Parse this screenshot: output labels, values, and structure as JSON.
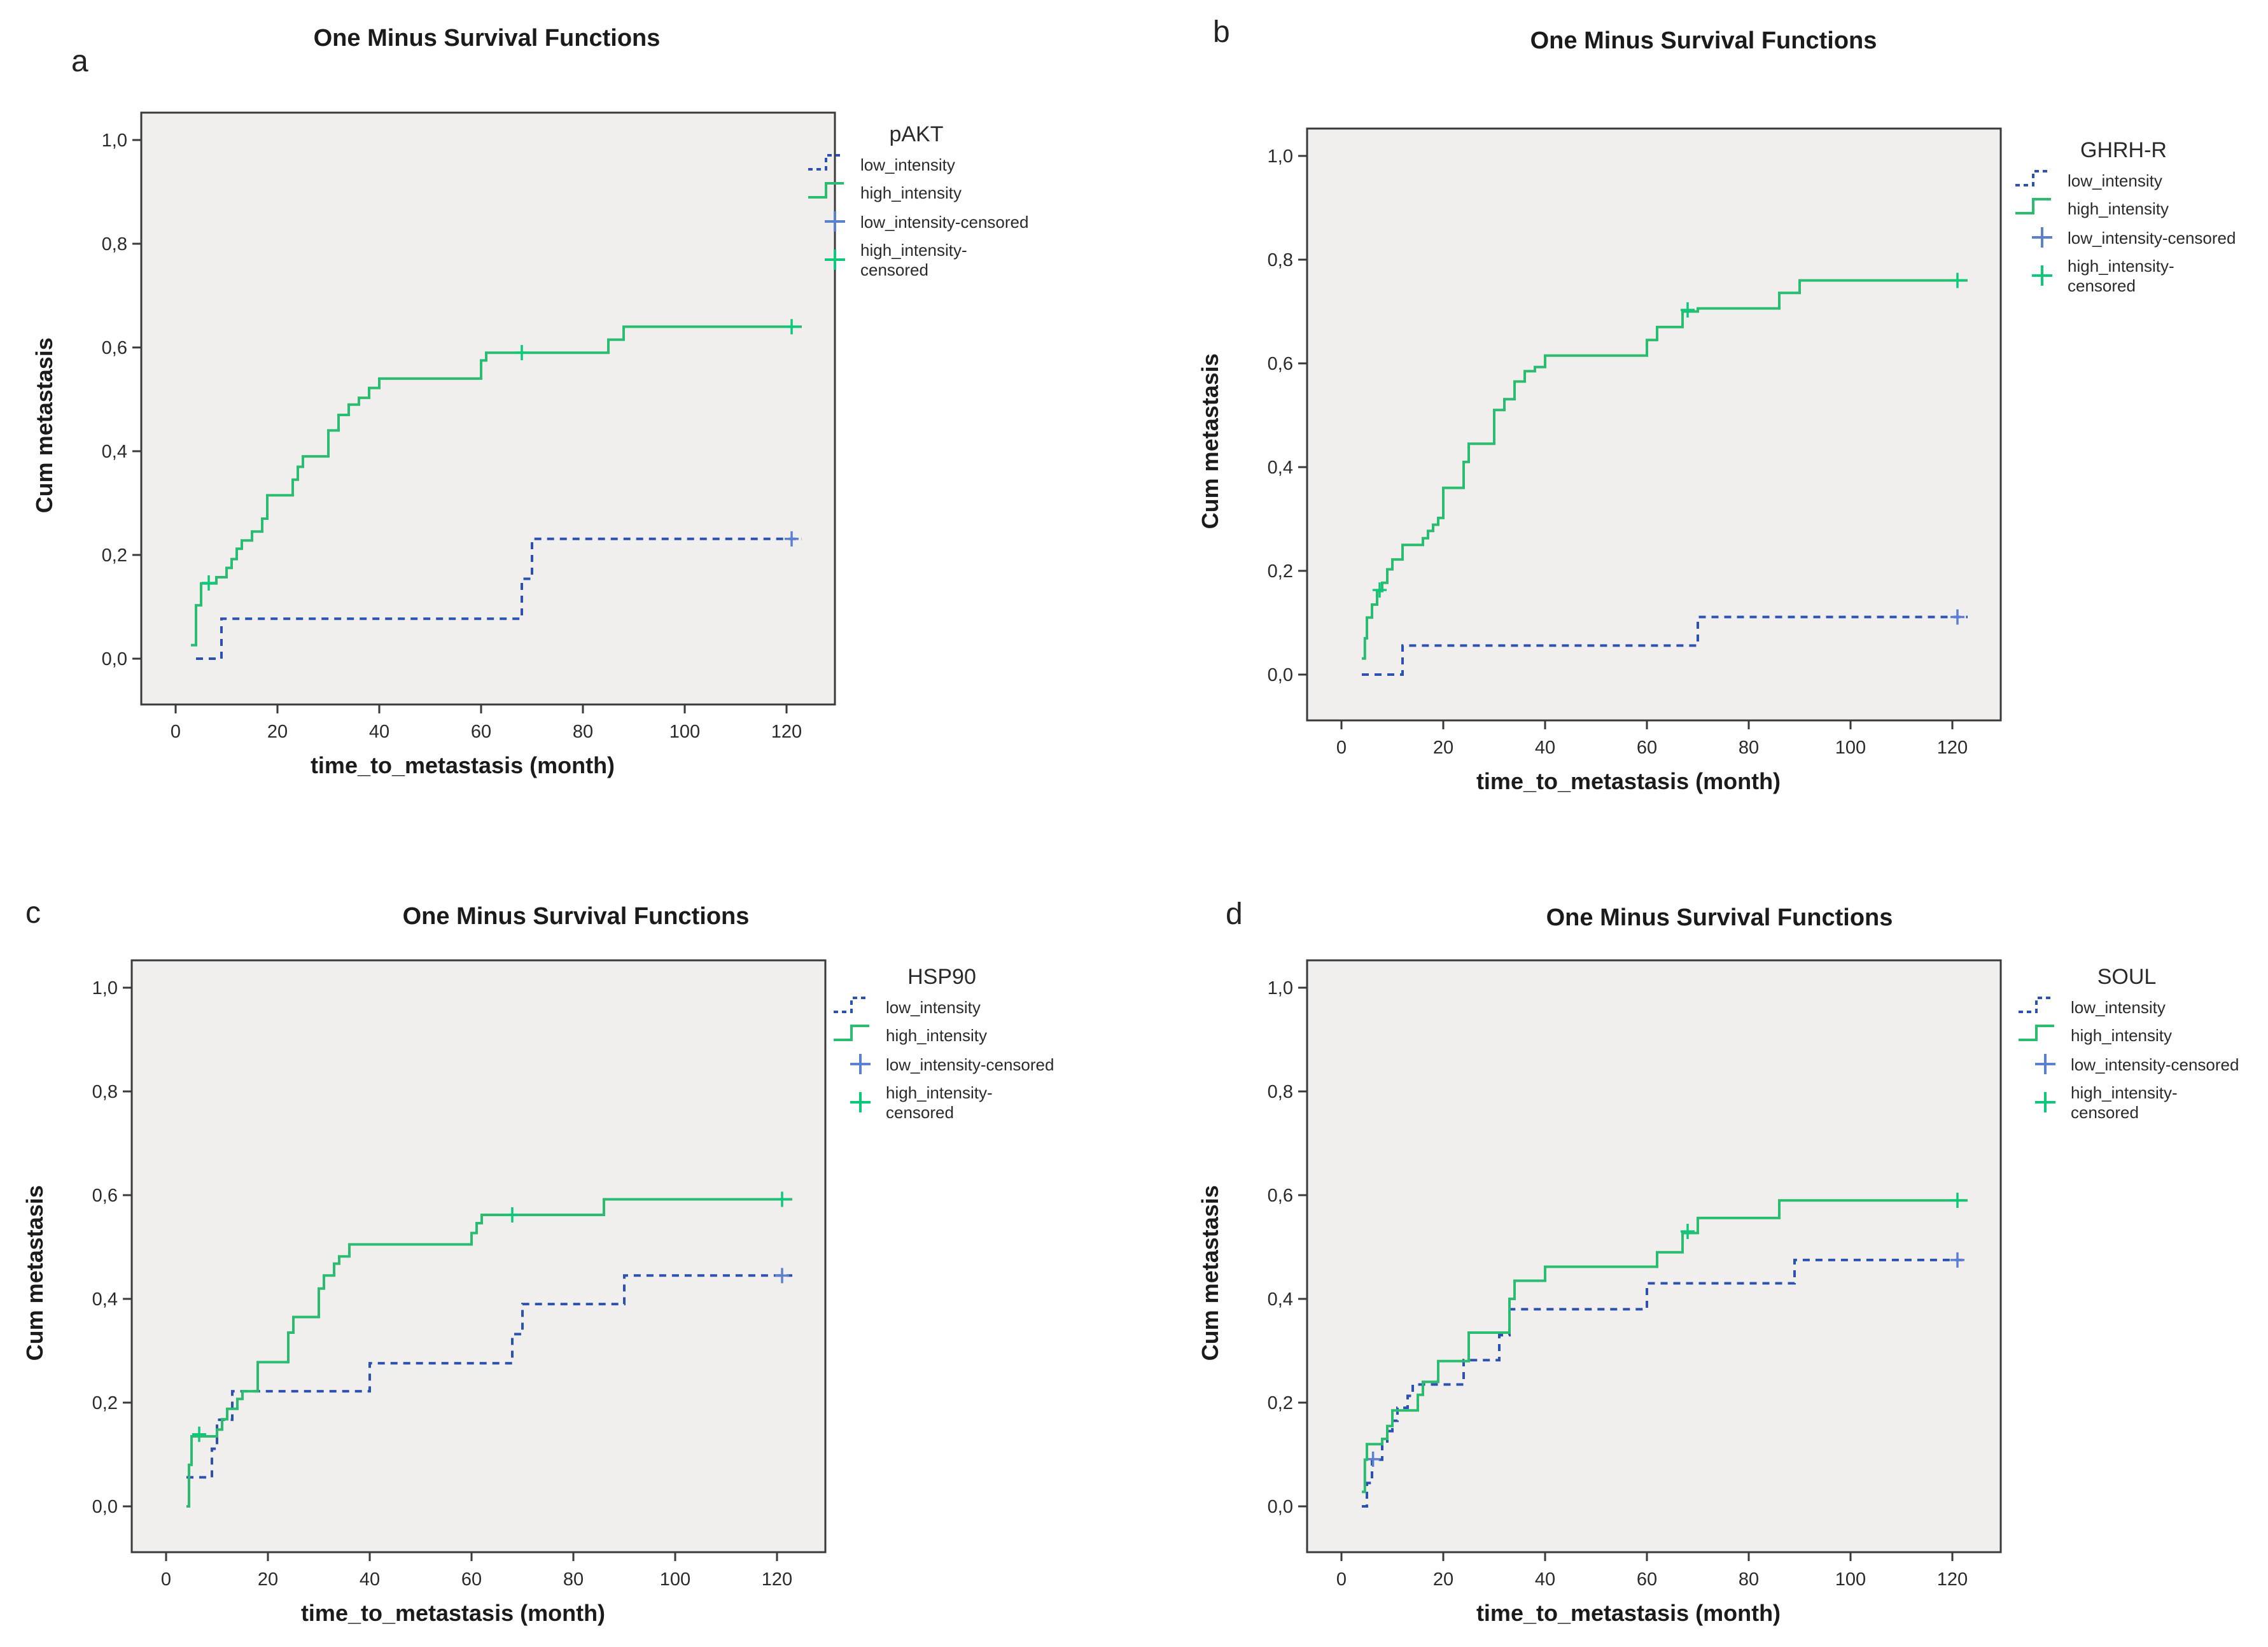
{
  "figure": {
    "background": "#ffffff",
    "plot_background": "#f0efee",
    "axis_color": "#3a3a3a",
    "text_color": "#1b1b1b"
  },
  "colors": {
    "low_intensity_line": "#2b52b0",
    "high_intensity_line": "#2abd6f",
    "low_censored_mark": "#5b7fd1",
    "high_censored_mark": "#0cc97a"
  },
  "chart_data": [
    {
      "type": "line",
      "letter": "a",
      "title": "One Minus Survival Functions",
      "xlabel": "time_to_metastasis (month)",
      "ylabel": "Cum metastasis",
      "xlim": [
        -7,
        129
      ],
      "ylim": [
        0,
        1
      ],
      "x_ticks": [
        "0",
        "20",
        "40",
        "60",
        "80",
        "100",
        "120"
      ],
      "x_tick_values": [
        0,
        20,
        40,
        60,
        80,
        100,
        120
      ],
      "y_ticks": [
        "0,0",
        "0,2",
        "0,4",
        "0,6",
        "0,8",
        "1,0"
      ],
      "y_tick_values": [
        0,
        0.2,
        0.4,
        0.6,
        0.8,
        1.0
      ],
      "legend": {
        "title": "pAKT",
        "entries": [
          {
            "label": "low_intensity",
            "swatch": "dashed-step",
            "color": "#2b52b0"
          },
          {
            "label": "high_intensity",
            "swatch": "solid-step",
            "color": "#2abd6f"
          },
          {
            "label": "low_intensity-censored",
            "swatch": "plus",
            "color": "#5b7fd1"
          },
          {
            "label_line1": "high_intensity-",
            "label_line2": "censored",
            "swatch": "plus",
            "color": "#0cc97a"
          }
        ]
      },
      "series": [
        {
          "name": "low_intensity",
          "dashed": true,
          "color": "#2b52b0",
          "points": [
            [
              4,
              0
            ],
            [
              9,
              0.077
            ],
            [
              68,
              0.154
            ],
            [
              70,
              0.231
            ],
            [
              123,
              0.231
            ]
          ],
          "censored": [
            [
              121,
              0.231
            ]
          ],
          "censor_color": "#5b7fd1"
        },
        {
          "name": "high_intensity",
          "dashed": false,
          "color": "#2abd6f",
          "points": [
            [
              3,
              0.026
            ],
            [
              4,
              0.103
            ],
            [
              5,
              0.145
            ],
            [
              8,
              0.157
            ],
            [
              10,
              0.175
            ],
            [
              11,
              0.192
            ],
            [
              12,
              0.212
            ],
            [
              13,
              0.228
            ],
            [
              15,
              0.245
            ],
            [
              17,
              0.27
            ],
            [
              18,
              0.315
            ],
            [
              23,
              0.345
            ],
            [
              24,
              0.37
            ],
            [
              25,
              0.39
            ],
            [
              30,
              0.44
            ],
            [
              32,
              0.47
            ],
            [
              34,
              0.49
            ],
            [
              36,
              0.503
            ],
            [
              38,
              0.522
            ],
            [
              40,
              0.54
            ],
            [
              60,
              0.575
            ],
            [
              61,
              0.59
            ],
            [
              85,
              0.615
            ],
            [
              88,
              0.64
            ],
            [
              123,
              0.64
            ]
          ],
          "censored": [
            [
              6.5,
              0.146
            ],
            [
              68,
              0.59
            ],
            [
              121,
              0.64
            ]
          ],
          "censor_color": "#0cc97a"
        }
      ]
    },
    {
      "type": "line",
      "letter": "b",
      "title": "One Minus Survival Functions",
      "xlabel": "time_to_metastasis (month)",
      "ylabel": "Cum metastasis",
      "xlim": [
        -7,
        129
      ],
      "ylim": [
        0,
        1
      ],
      "x_ticks": [
        "0",
        "20",
        "40",
        "60",
        "80",
        "100",
        "120"
      ],
      "x_tick_values": [
        0,
        20,
        40,
        60,
        80,
        100,
        120
      ],
      "y_ticks": [
        "0,0",
        "0,2",
        "0,4",
        "0,6",
        "0,8",
        "1,0"
      ],
      "y_tick_values": [
        0,
        0.2,
        0.4,
        0.6,
        0.8,
        1.0
      ],
      "legend": {
        "title": "GHRH-R",
        "entries": [
          {
            "label": "low_intensity",
            "swatch": "dashed-step",
            "color": "#2b52b0"
          },
          {
            "label": "high_intensity",
            "swatch": "solid-step",
            "color": "#2abd6f"
          },
          {
            "label": "low_intensity-censored",
            "swatch": "plus",
            "color": "#5b7fd1"
          },
          {
            "label_line1": "high_intensity-",
            "label_line2": "censored",
            "swatch": "plus",
            "color": "#0cc97a"
          }
        ]
      },
      "series": [
        {
          "name": "low_intensity",
          "dashed": true,
          "color": "#2b52b0",
          "points": [
            [
              4,
              0
            ],
            [
              12,
              0.056
            ],
            [
              70,
              0.111
            ],
            [
              123,
              0.111
            ]
          ],
          "censored": [
            [
              121,
              0.111
            ]
          ],
          "censor_color": "#5b7fd1"
        },
        {
          "name": "high_intensity",
          "dashed": false,
          "color": "#2abd6f",
          "points": [
            [
              4,
              0.031
            ],
            [
              4.6,
              0.07
            ],
            [
              5,
              0.11
            ],
            [
              6,
              0.135
            ],
            [
              7,
              0.161
            ],
            [
              8,
              0.177
            ],
            [
              9,
              0.203
            ],
            [
              10,
              0.222
            ],
            [
              12,
              0.25
            ],
            [
              16,
              0.263
            ],
            [
              17,
              0.277
            ],
            [
              18,
              0.289
            ],
            [
              19,
              0.302
            ],
            [
              20,
              0.36
            ],
            [
              24,
              0.41
            ],
            [
              25,
              0.445
            ],
            [
              30,
              0.51
            ],
            [
              32,
              0.531
            ],
            [
              34,
              0.565
            ],
            [
              36,
              0.585
            ],
            [
              38,
              0.593
            ],
            [
              40,
              0.615
            ],
            [
              60,
              0.645
            ],
            [
              62,
              0.67
            ],
            [
              67,
              0.7
            ],
            [
              70,
              0.706
            ],
            [
              86,
              0.736
            ],
            [
              90,
              0.76
            ],
            [
              123,
              0.76
            ]
          ],
          "censored": [
            [
              7.5,
              0.163
            ],
            [
              68,
              0.703
            ],
            [
              121,
              0.76
            ]
          ],
          "censor_color": "#0cc97a"
        }
      ]
    },
    {
      "type": "line",
      "letter": "c",
      "title": "One Minus Survival Functions",
      "xlabel": "time_to_metastasis (month)",
      "ylabel": "Cum metastasis",
      "xlim": [
        -7,
        129
      ],
      "ylim": [
        0,
        1
      ],
      "x_ticks": [
        "0",
        "20",
        "40",
        "60",
        "80",
        "100",
        "120"
      ],
      "x_tick_values": [
        0,
        20,
        40,
        60,
        80,
        100,
        120
      ],
      "y_ticks": [
        "0,0",
        "0,2",
        "0,4",
        "0,6",
        "0,8",
        "1,0"
      ],
      "y_tick_values": [
        0,
        0.2,
        0.4,
        0.6,
        0.8,
        1.0
      ],
      "legend": {
        "title": "HSP90",
        "entries": [
          {
            "label": "low_intensity",
            "swatch": "dashed-step",
            "color": "#2b52b0"
          },
          {
            "label": "high_intensity",
            "swatch": "solid-step",
            "color": "#2abd6f"
          },
          {
            "label": "low_intensity-censored",
            "swatch": "plus",
            "color": "#5b7fd1"
          },
          {
            "label_line1": "high_intensity-",
            "label_line2": "censored",
            "swatch": "plus",
            "color": "#0cc97a"
          }
        ]
      },
      "series": [
        {
          "name": "low_intensity",
          "dashed": true,
          "color": "#2b52b0",
          "points": [
            [
              4,
              0.056
            ],
            [
              9,
              0.111
            ],
            [
              10,
              0.167
            ],
            [
              13,
              0.222
            ],
            [
              40,
              0.276
            ],
            [
              68,
              0.332
            ],
            [
              70,
              0.39
            ],
            [
              90,
              0.445
            ],
            [
              123,
              0.445
            ]
          ],
          "censored": [
            [
              121,
              0.445
            ]
          ],
          "censor_color": "#5b7fd1"
        },
        {
          "name": "high_intensity",
          "dashed": false,
          "color": "#2abd6f",
          "points": [
            [
              4,
              0
            ],
            [
              4.5,
              0.08
            ],
            [
              5,
              0.135
            ],
            [
              10,
              0.148
            ],
            [
              11,
              0.168
            ],
            [
              12,
              0.188
            ],
            [
              14,
              0.207
            ],
            [
              15,
              0.222
            ],
            [
              18,
              0.278
            ],
            [
              24,
              0.335
            ],
            [
              25,
              0.365
            ],
            [
              30,
              0.42
            ],
            [
              31,
              0.445
            ],
            [
              33,
              0.468
            ],
            [
              34,
              0.482
            ],
            [
              36,
              0.505
            ],
            [
              60,
              0.527
            ],
            [
              61,
              0.546
            ],
            [
              62,
              0.562
            ],
            [
              86,
              0.592
            ],
            [
              123,
              0.592
            ]
          ],
          "censored": [
            [
              6.5,
              0.139
            ],
            [
              68,
              0.562
            ],
            [
              121,
              0.592
            ]
          ],
          "censor_color": "#0cc97a"
        }
      ]
    },
    {
      "type": "line",
      "letter": "d",
      "title": "One Minus Survival Functions",
      "xlabel": "time_to_metastasis (month)",
      "ylabel": "Cum metastasis",
      "xlim": [
        -7,
        129
      ],
      "ylim": [
        0,
        1
      ],
      "x_ticks": [
        "0",
        "20",
        "40",
        "60",
        "80",
        "100",
        "120"
      ],
      "x_tick_values": [
        0,
        20,
        40,
        60,
        80,
        100,
        120
      ],
      "y_ticks": [
        "0,0",
        "0,2",
        "0,4",
        "0,6",
        "0,8",
        "1,0"
      ],
      "y_tick_values": [
        0,
        0.2,
        0.4,
        0.6,
        0.8,
        1.0
      ],
      "legend": {
        "title": "SOUL",
        "entries": [
          {
            "label": "low_intensity",
            "swatch": "dashed-step",
            "color": "#2b52b0"
          },
          {
            "label": "high_intensity",
            "swatch": "solid-step",
            "color": "#2abd6f"
          },
          {
            "label": "low_intensity-censored",
            "swatch": "plus",
            "color": "#5b7fd1"
          },
          {
            "label_line1": "high_intensity-",
            "label_line2": "censored",
            "swatch": "plus",
            "color": "#0cc97a"
          }
        ]
      },
      "series": [
        {
          "name": "low_intensity",
          "dashed": true,
          "color": "#2b52b0",
          "points": [
            [
              4,
              0
            ],
            [
              5,
              0.045
            ],
            [
              6,
              0.09
            ],
            [
              8,
              0.12
            ],
            [
              9,
              0.145
            ],
            [
              10,
              0.165
            ],
            [
              11,
              0.19
            ],
            [
              13,
              0.213
            ],
            [
              14,
              0.235
            ],
            [
              24,
              0.282
            ],
            [
              31,
              0.33
            ],
            [
              33,
              0.38
            ],
            [
              60,
              0.43
            ],
            [
              89,
              0.475
            ],
            [
              123,
              0.475
            ]
          ],
          "censored": [
            [
              6.2,
              0.091
            ],
            [
              121,
              0.475
            ]
          ],
          "censor_color": "#5b7fd1"
        },
        {
          "name": "high_intensity",
          "dashed": false,
          "color": "#2abd6f",
          "points": [
            [
              4,
              0.028
            ],
            [
              4.6,
              0.09
            ],
            [
              5,
              0.12
            ],
            [
              8,
              0.13
            ],
            [
              9,
              0.155
            ],
            [
              10,
              0.185
            ],
            [
              15,
              0.215
            ],
            [
              16,
              0.24
            ],
            [
              19,
              0.28
            ],
            [
              25,
              0.335
            ],
            [
              33,
              0.4
            ],
            [
              34,
              0.435
            ],
            [
              40,
              0.462
            ],
            [
              62,
              0.49
            ],
            [
              67,
              0.527
            ],
            [
              70,
              0.556
            ],
            [
              86,
              0.59
            ],
            [
              123,
              0.59
            ]
          ],
          "censored": [
            [
              68,
              0.53
            ],
            [
              121,
              0.59
            ]
          ],
          "censor_color": "#0cc97a"
        }
      ]
    }
  ]
}
